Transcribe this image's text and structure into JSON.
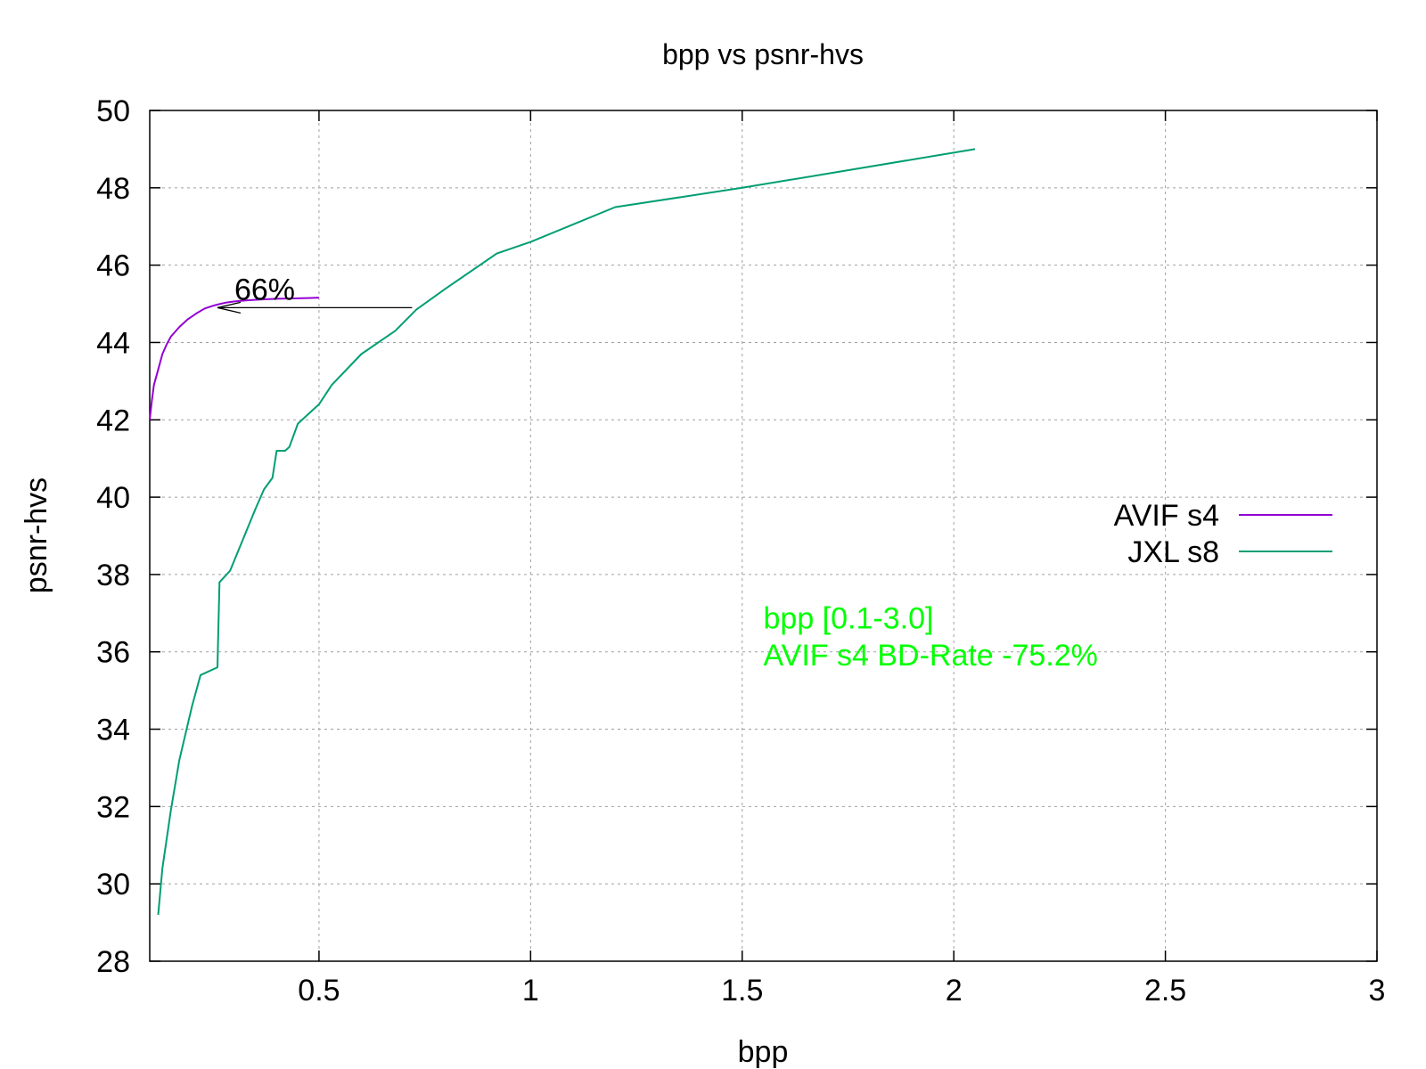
{
  "chart_data": {
    "type": "line",
    "title": "bpp vs psnr-hvs",
    "xlabel": "bpp",
    "ylabel": "psnr-hvs",
    "xlim": [
      0.1,
      3.0
    ],
    "ylim": [
      28,
      50
    ],
    "xticks": [
      0.5,
      1,
      1.5,
      2,
      2.5,
      3
    ],
    "xtick_labels": [
      "0.5",
      "1",
      "1.5",
      "2",
      "2.5",
      "3"
    ],
    "yticks": [
      28,
      30,
      32,
      34,
      36,
      38,
      40,
      42,
      44,
      46,
      48,
      50
    ],
    "ytick_labels": [
      "28",
      "30",
      "32",
      "34",
      "36",
      "38",
      "40",
      "42",
      "44",
      "46",
      "48",
      "50"
    ],
    "grid": true,
    "legend_position": "right",
    "series": [
      {
        "name": "AVIF s4",
        "color": "#9400d3",
        "x": [
          0.1,
          0.105,
          0.11,
          0.12,
          0.13,
          0.14,
          0.15,
          0.17,
          0.19,
          0.21,
          0.23,
          0.25,
          0.26,
          0.28,
          0.3,
          0.33,
          0.36,
          0.4,
          0.44,
          0.48,
          0.5
        ],
        "y": [
          42.0,
          42.5,
          42.9,
          43.3,
          43.7,
          43.95,
          44.15,
          44.4,
          44.6,
          44.75,
          44.88,
          44.95,
          44.98,
          45.03,
          45.06,
          45.09,
          45.11,
          45.13,
          45.14,
          45.15,
          45.16
        ]
      },
      {
        "name": "JXL s8",
        "color": "#009e73",
        "x": [
          0.12,
          0.13,
          0.15,
          0.17,
          0.2,
          0.22,
          0.26,
          0.262,
          0.265,
          0.29,
          0.32,
          0.35,
          0.37,
          0.39,
          0.4,
          0.42,
          0.43,
          0.45,
          0.47,
          0.5,
          0.53,
          0.6,
          0.68,
          0.73,
          0.8,
          0.92,
          1.0,
          1.2,
          1.5,
          2.05
        ],
        "y": [
          29.2,
          30.4,
          31.9,
          33.2,
          34.6,
          35.4,
          35.6,
          36.5,
          37.8,
          38.1,
          38.9,
          39.7,
          40.2,
          40.5,
          41.2,
          41.2,
          41.3,
          41.9,
          42.1,
          42.4,
          42.9,
          43.7,
          44.3,
          44.85,
          45.4,
          46.3,
          46.6,
          47.5,
          48.0,
          49.0
        ]
      }
    ],
    "annotations": [
      {
        "text": "66%",
        "x": 0.3,
        "y": 45.1
      },
      {
        "text": "bpp [0.1-3.0]",
        "x": 1.55,
        "y": 36.6,
        "color": "#00ff00"
      },
      {
        "text": "AVIF s4 BD-Rate -75.2%",
        "x": 1.55,
        "y": 35.65,
        "color": "#00ff00"
      }
    ],
    "arrow": {
      "from": [
        0.72,
        44.9
      ],
      "to": [
        0.26,
        44.9
      ]
    }
  }
}
